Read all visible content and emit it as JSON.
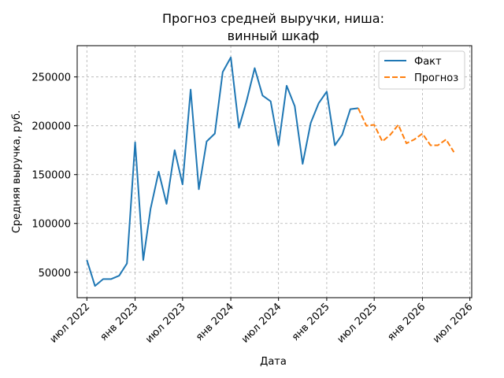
{
  "chart_data": {
    "type": "line",
    "title_line1": "Прогноз средней выручки, ниша:",
    "title_line2": "винный шкаф",
    "xlabel": "Дата",
    "ylabel": "Средняя выручка, руб.",
    "x_range": [
      "2022-05-25",
      "2026-07-08"
    ],
    "ylim": [
      24000,
      282000
    ],
    "y_ticks": [
      50000,
      100000,
      150000,
      200000,
      250000
    ],
    "y_tick_labels": [
      "50000",
      "100000",
      "150000",
      "200000",
      "250000"
    ],
    "x_ticks": [
      {
        "date": "2022-07-01",
        "label": "июл 2022"
      },
      {
        "date": "2023-01-01",
        "label": "янв 2023"
      },
      {
        "date": "2023-07-01",
        "label": "июл 2023"
      },
      {
        "date": "2024-01-01",
        "label": "янв 2024"
      },
      {
        "date": "2024-07-01",
        "label": "июл 2024"
      },
      {
        "date": "2025-01-01",
        "label": "янв 2025"
      },
      {
        "date": "2025-07-01",
        "label": "июл 2025"
      },
      {
        "date": "2026-01-01",
        "label": "янв 2026"
      },
      {
        "date": "2026-07-01",
        "label": "июл 2026"
      }
    ],
    "grid": true,
    "legend_position": "top-right",
    "series": [
      {
        "name": "Факт",
        "color": "#1f77b4",
        "style": "solid",
        "points": [
          [
            "2022-07-01",
            62500
          ],
          [
            "2022-08-01",
            36000
          ],
          [
            "2022-09-01",
            43000
          ],
          [
            "2022-10-01",
            43000
          ],
          [
            "2022-11-01",
            46500
          ],
          [
            "2022-12-01",
            59000
          ],
          [
            "2023-01-01",
            183000
          ],
          [
            "2023-02-01",
            62500
          ],
          [
            "2023-03-01",
            115000
          ],
          [
            "2023-04-01",
            153000
          ],
          [
            "2023-05-01",
            120000
          ],
          [
            "2023-06-01",
            175000
          ],
          [
            "2023-07-01",
            140000
          ],
          [
            "2023-08-01",
            237000
          ],
          [
            "2023-09-01",
            135000
          ],
          [
            "2023-10-01",
            184000
          ],
          [
            "2023-11-01",
            192000
          ],
          [
            "2023-12-01",
            255000
          ],
          [
            "2024-01-01",
            270000
          ],
          [
            "2024-02-01",
            198000
          ],
          [
            "2024-03-01",
            225000
          ],
          [
            "2024-04-01",
            259000
          ],
          [
            "2024-05-01",
            231000
          ],
          [
            "2024-06-01",
            225000
          ],
          [
            "2024-07-01",
            180000
          ],
          [
            "2024-08-01",
            241000
          ],
          [
            "2024-09-01",
            220000
          ],
          [
            "2024-10-01",
            161000
          ],
          [
            "2024-11-01",
            203000
          ],
          [
            "2024-12-01",
            223000
          ],
          [
            "2025-01-01",
            235000
          ],
          [
            "2025-02-01",
            180000
          ],
          [
            "2025-03-01",
            191000
          ],
          [
            "2025-04-01",
            217000
          ],
          [
            "2025-05-01",
            218000
          ]
        ]
      },
      {
        "name": "Прогноз",
        "color": "#ff7f0e",
        "style": "dashed",
        "points": [
          [
            "2025-05-01",
            218000
          ],
          [
            "2025-06-01",
            200000
          ],
          [
            "2025-07-01",
            201000
          ],
          [
            "2025-08-01",
            184000
          ],
          [
            "2025-09-01",
            191000
          ],
          [
            "2025-10-01",
            201000
          ],
          [
            "2025-11-01",
            182000
          ],
          [
            "2025-12-01",
            186000
          ],
          [
            "2026-01-01",
            192000
          ],
          [
            "2026-02-01",
            180000
          ],
          [
            "2026-03-01",
            180000
          ],
          [
            "2026-04-01",
            186000
          ],
          [
            "2026-05-01",
            173000
          ]
        ]
      }
    ]
  }
}
